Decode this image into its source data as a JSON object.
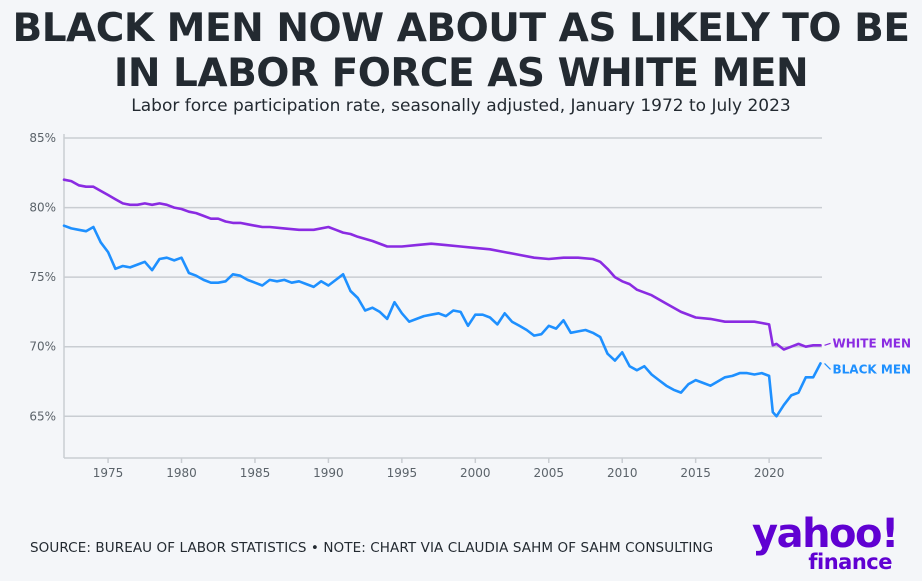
{
  "header": {
    "title_line1": "BLACK MEN NOW ABOUT AS LIKELY TO BE",
    "title_line2": "IN LABOR FORCE AS WHITE MEN",
    "subtitle": "Labor force participation rate, seasonally adjusted, January 1972 to July 2023"
  },
  "footer": {
    "source": "SOURCE: BUREAU OF LABOR STATISTICS • NOTE: CHART VIA CLAUDIA SAHM OF SAHM CONSULTING",
    "logo_main": "yahoo!",
    "logo_sub": "finance"
  },
  "colors": {
    "white_men": "#8a2be2",
    "black_men": "#1e90ff",
    "grid": "#c9cdd2",
    "brand": "#6001d2"
  },
  "chart_data": {
    "type": "line",
    "title": "BLACK MEN NOW ABOUT AS LIKELY TO BE IN LABOR FORCE AS WHITE MEN",
    "subtitle": "Labor force participation rate, seasonally adjusted, January 1972 to July 2023",
    "xlabel": "",
    "ylabel": "",
    "xlim": [
      1972.0,
      2023.6
    ],
    "ylim": [
      62,
      85
    ],
    "yticks": [
      65,
      70,
      75,
      80,
      85
    ],
    "ytick_labels": [
      "65%",
      "70%",
      "75%",
      "80%",
      "85%"
    ],
    "xticks": [
      1975,
      1980,
      1985,
      1990,
      1995,
      2000,
      2005,
      2010,
      2015,
      2020
    ],
    "xtick_labels": [
      "1975",
      "1980",
      "1985",
      "1990",
      "1995",
      "2000",
      "2005",
      "2010",
      "2015",
      "2020"
    ],
    "grid": "horizontal",
    "legend": "direct labels at line ends (right)",
    "series": [
      {
        "name": "WHITE MEN",
        "color": "#8a2be2",
        "x": [
          1972.0,
          1972.5,
          1973.0,
          1973.5,
          1974.0,
          1974.5,
          1975.0,
          1975.5,
          1976.0,
          1976.5,
          1977.0,
          1977.5,
          1978.0,
          1978.5,
          1979.0,
          1979.5,
          1980.0,
          1980.5,
          1981.0,
          1981.5,
          1982.0,
          1982.5,
          1983.0,
          1983.5,
          1984.0,
          1984.5,
          1985.0,
          1985.5,
          1986.0,
          1987.0,
          1988.0,
          1989.0,
          1990.0,
          1990.5,
          1991.0,
          1991.5,
          1992.0,
          1993.0,
          1994.0,
          1995.0,
          1996.0,
          1997.0,
          1998.0,
          1999.0,
          2000.0,
          2001.0,
          2002.0,
          2003.0,
          2004.0,
          2005.0,
          2006.0,
          2007.0,
          2008.0,
          2008.5,
          2009.0,
          2009.5,
          2010.0,
          2010.5,
          2011.0,
          2012.0,
          2013.0,
          2014.0,
          2015.0,
          2016.0,
          2017.0,
          2018.0,
          2019.0,
          2019.5,
          2020.0,
          2020.25,
          2020.5,
          2021.0,
          2021.5,
          2022.0,
          2022.5,
          2023.0,
          2023.5
        ],
        "values": [
          82.0,
          81.9,
          81.6,
          81.5,
          81.5,
          81.2,
          80.9,
          80.6,
          80.3,
          80.2,
          80.2,
          80.3,
          80.2,
          80.3,
          80.2,
          80.0,
          79.9,
          79.7,
          79.6,
          79.4,
          79.2,
          79.2,
          79.0,
          78.9,
          78.9,
          78.8,
          78.7,
          78.6,
          78.6,
          78.5,
          78.4,
          78.4,
          78.6,
          78.4,
          78.2,
          78.1,
          77.9,
          77.6,
          77.2,
          77.2,
          77.3,
          77.4,
          77.3,
          77.2,
          77.1,
          77.0,
          76.8,
          76.6,
          76.4,
          76.3,
          76.4,
          76.4,
          76.3,
          76.1,
          75.6,
          75.0,
          74.7,
          74.5,
          74.1,
          73.7,
          73.1,
          72.5,
          72.1,
          72.0,
          71.8,
          71.8,
          71.8,
          71.7,
          71.6,
          70.1,
          70.2,
          69.8,
          70.0,
          70.2,
          70.0,
          70.1,
          70.1
        ]
      },
      {
        "name": "BLACK MEN",
        "color": "#1e90ff",
        "x": [
          1972.0,
          1972.5,
          1973.0,
          1973.5,
          1974.0,
          1974.5,
          1975.0,
          1975.5,
          1976.0,
          1976.5,
          1977.0,
          1977.5,
          1978.0,
          1978.5,
          1979.0,
          1979.5,
          1980.0,
          1980.5,
          1981.0,
          1981.5,
          1982.0,
          1982.5,
          1983.0,
          1983.5,
          1984.0,
          1984.5,
          1985.0,
          1985.5,
          1986.0,
          1986.5,
          1987.0,
          1987.5,
          1988.0,
          1988.5,
          1989.0,
          1989.5,
          1990.0,
          1990.5,
          1991.0,
          1991.5,
          1992.0,
          1992.5,
          1993.0,
          1993.5,
          1994.0,
          1994.5,
          1995.0,
          1995.5,
          1996.0,
          1996.5,
          1997.0,
          1997.5,
          1998.0,
          1998.5,
          1999.0,
          1999.5,
          2000.0,
          2000.5,
          2001.0,
          2001.5,
          2002.0,
          2002.5,
          2003.0,
          2003.5,
          2004.0,
          2004.5,
          2005.0,
          2005.5,
          2006.0,
          2006.5,
          2007.0,
          2007.5,
          2008.0,
          2008.5,
          2009.0,
          2009.5,
          2010.0,
          2010.5,
          2011.0,
          2011.5,
          2012.0,
          2012.5,
          2013.0,
          2013.5,
          2014.0,
          2014.5,
          2015.0,
          2015.5,
          2016.0,
          2016.5,
          2017.0,
          2017.5,
          2018.0,
          2018.5,
          2019.0,
          2019.5,
          2020.0,
          2020.25,
          2020.5,
          2021.0,
          2021.5,
          2022.0,
          2022.5,
          2023.0,
          2023.5
        ],
        "values": [
          78.7,
          78.5,
          78.4,
          78.3,
          78.6,
          77.5,
          76.8,
          75.6,
          75.8,
          75.7,
          75.9,
          76.1,
          75.5,
          76.3,
          76.4,
          76.2,
          76.4,
          75.3,
          75.1,
          74.8,
          74.6,
          74.6,
          74.7,
          75.2,
          75.1,
          74.8,
          74.6,
          74.4,
          74.8,
          74.7,
          74.8,
          74.6,
          74.7,
          74.5,
          74.3,
          74.7,
          74.4,
          74.8,
          75.2,
          74.0,
          73.5,
          72.6,
          72.8,
          72.5,
          72.0,
          73.2,
          72.4,
          71.8,
          72.0,
          72.2,
          72.3,
          72.4,
          72.2,
          72.6,
          72.5,
          71.5,
          72.3,
          72.3,
          72.1,
          71.6,
          72.4,
          71.8,
          71.5,
          71.2,
          70.8,
          70.9,
          71.5,
          71.3,
          71.9,
          71.0,
          71.1,
          71.2,
          71.0,
          70.7,
          69.5,
          69.0,
          69.6,
          68.6,
          68.3,
          68.6,
          68.0,
          67.6,
          67.2,
          66.9,
          66.7,
          67.3,
          67.6,
          67.4,
          67.2,
          67.5,
          67.8,
          67.9,
          68.1,
          68.1,
          68.0,
          68.1,
          67.9,
          65.3,
          65.0,
          65.8,
          66.5,
          66.7,
          67.8,
          67.8,
          68.8
        ]
      }
    ]
  }
}
